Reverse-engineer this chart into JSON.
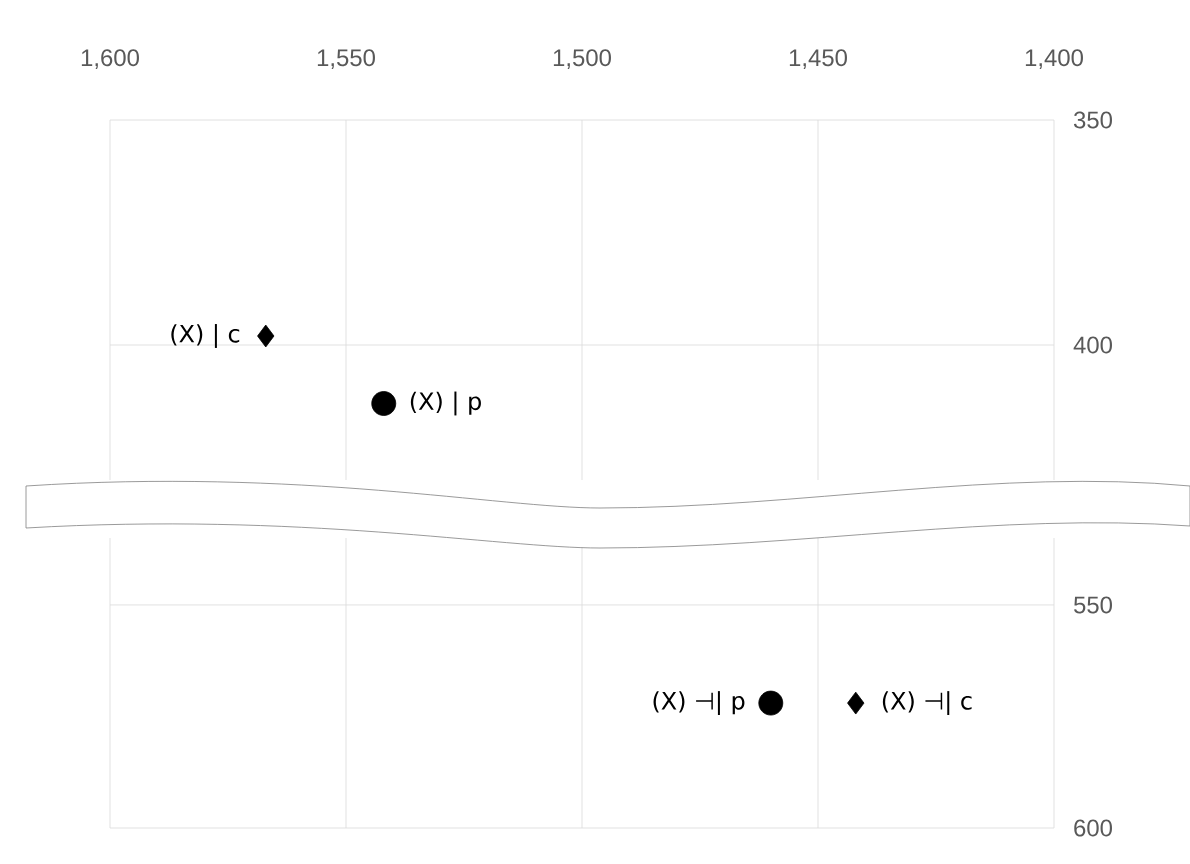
{
  "chart_data": [
    {
      "type": "scatter",
      "xlim": [
        1600,
        1400
      ],
      "xticks": [
        {
          "value": 1600,
          "label": "1,600"
        },
        {
          "value": 1550,
          "label": "1,550"
        },
        {
          "value": 1500,
          "label": "1,500"
        },
        {
          "value": 1450,
          "label": "1,450"
        },
        {
          "value": 1400,
          "label": "1,400"
        }
      ],
      "ylim": [
        430,
        350
      ],
      "yticks": [
        350,
        400
      ],
      "grid": true,
      "legend": false,
      "series": [
        {
          "name": "(X) | c",
          "color": "#000000",
          "marker": "diamond",
          "x": [
            1567
          ],
          "values": [
            398
          ]
        },
        {
          "name": "(X) | p",
          "color": "#000000",
          "marker": "circle",
          "x": [
            1542
          ],
          "values": [
            413
          ]
        }
      ]
    },
    {
      "type": "scatter",
      "xlim": [
        1600,
        1400
      ],
      "xticks": [
        1600,
        1550,
        1500,
        1450,
        1400
      ],
      "ylim": [
        600,
        535
      ],
      "yticks": [
        550,
        600
      ],
      "grid": true,
      "legend": false,
      "tick_labels": "y",
      "series": [
        {
          "name": "(X) ⊣| p",
          "color": "#000000",
          "marker": "circle",
          "x": [
            1460
          ],
          "values": [
            572
          ]
        },
        {
          "name": "(X) ⊣| c",
          "color": "#000000",
          "marker": "diamond",
          "x": [
            1442
          ],
          "values": [
            572
          ]
        }
      ]
    }
  ]
}
